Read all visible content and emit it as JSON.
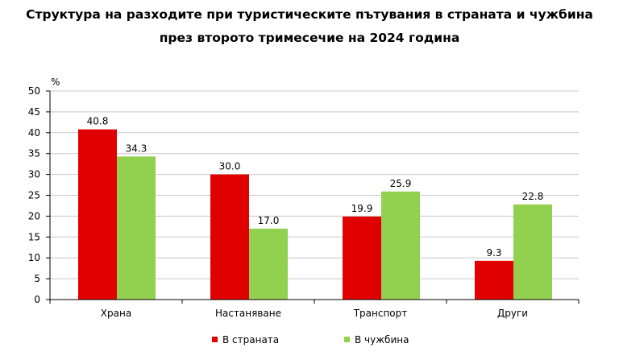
{
  "chart_data": {
    "type": "bar",
    "title_line1": "Структура на разходите при туристическите пътувания в страната и чужбина",
    "title_line2": "през второто тримесечие на 2024 година",
    "ylabel": "%",
    "xlabel": "",
    "ylim": [
      0,
      50
    ],
    "yticks": [
      "0",
      "5",
      "10",
      "15",
      "20",
      "25",
      "30",
      "35",
      "40",
      "45",
      "50"
    ],
    "grid": true,
    "legend_position": "bottom",
    "categories": [
      "Храна",
      "Настаняване",
      "Транспорт",
      "Други"
    ],
    "series": [
      {
        "name": "В страната",
        "color": "#e00000",
        "values": [
          40.8,
          30.0,
          19.9,
          9.3
        ],
        "labels": [
          "40.8",
          "30.0",
          "19.9",
          "9.3"
        ]
      },
      {
        "name": "В чужбина",
        "color": "#92d050",
        "values": [
          34.3,
          17.0,
          25.9,
          22.8
        ],
        "labels": [
          "34.3",
          "17.0",
          "25.9",
          "22.8"
        ]
      }
    ]
  }
}
